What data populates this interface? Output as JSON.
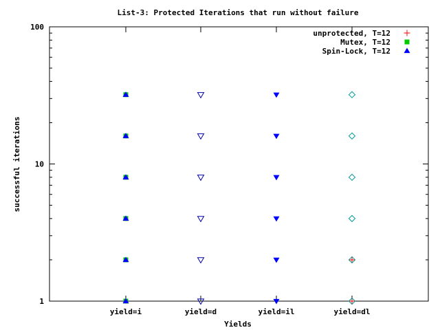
{
  "chart_data": {
    "type": "scatter",
    "title": "List-3: Protected Iterations that run without failure",
    "xlabel": "Yields",
    "ylabel": "successful iterations",
    "yscale": "log",
    "ylim": [
      1,
      100
    ],
    "grid": false,
    "legend_position": "top-right",
    "categories": [
      "yield=i",
      "yield=d",
      "yield=il",
      "yield=dl"
    ],
    "y_ticks": [
      {
        "value": 1,
        "label": "1"
      },
      {
        "value": 10,
        "label": "10"
      },
      {
        "value": 100,
        "label": "100"
      }
    ],
    "series": [
      {
        "name": "unprotected, T=12",
        "marker": "plus",
        "color": "#ff0000",
        "points": [
          {
            "x": "yield=dl",
            "y": 1
          },
          {
            "x": "yield=dl",
            "y": 2
          }
        ]
      },
      {
        "name": "Mutex, T=12",
        "marker": "square",
        "color": "#00cc00",
        "points": [
          {
            "x": "yield=i",
            "y": 1
          },
          {
            "x": "yield=i",
            "y": 2
          },
          {
            "x": "yield=i",
            "y": 4
          },
          {
            "x": "yield=i",
            "y": 8
          },
          {
            "x": "yield=i",
            "y": 16
          },
          {
            "x": "yield=i",
            "y": 32
          }
        ]
      },
      {
        "name": "Spin-Lock, T=12",
        "marker": "triangle-up",
        "color": "#0000ff",
        "points": [
          {
            "x": "yield=i",
            "y": 1
          },
          {
            "x": "yield=i",
            "y": 2
          },
          {
            "x": "yield=i",
            "y": 4
          },
          {
            "x": "yield=i",
            "y": 8
          },
          {
            "x": "yield=i",
            "y": 16
          },
          {
            "x": "yield=i",
            "y": 32
          }
        ]
      },
      {
        "name": "",
        "marker": "triangle-down-open",
        "color": "#0000aa",
        "points": [
          {
            "x": "yield=d",
            "y": 1
          },
          {
            "x": "yield=d",
            "y": 2
          },
          {
            "x": "yield=d",
            "y": 4
          },
          {
            "x": "yield=d",
            "y": 8
          },
          {
            "x": "yield=d",
            "y": 16
          },
          {
            "x": "yield=d",
            "y": 32
          }
        ]
      },
      {
        "name": "",
        "marker": "triangle-down-filled",
        "color": "#0000ff",
        "points": [
          {
            "x": "yield=il",
            "y": 1
          },
          {
            "x": "yield=il",
            "y": 2
          },
          {
            "x": "yield=il",
            "y": 4
          },
          {
            "x": "yield=il",
            "y": 8
          },
          {
            "x": "yield=il",
            "y": 16
          },
          {
            "x": "yield=il",
            "y": 32
          }
        ]
      },
      {
        "name": "",
        "marker": "diamond-open",
        "color": "#009999",
        "points": [
          {
            "x": "yield=dl",
            "y": 1
          },
          {
            "x": "yield=dl",
            "y": 2
          },
          {
            "x": "yield=dl",
            "y": 4
          },
          {
            "x": "yield=dl",
            "y": 8
          },
          {
            "x": "yield=dl",
            "y": 16
          },
          {
            "x": "yield=dl",
            "y": 32
          }
        ]
      }
    ]
  }
}
